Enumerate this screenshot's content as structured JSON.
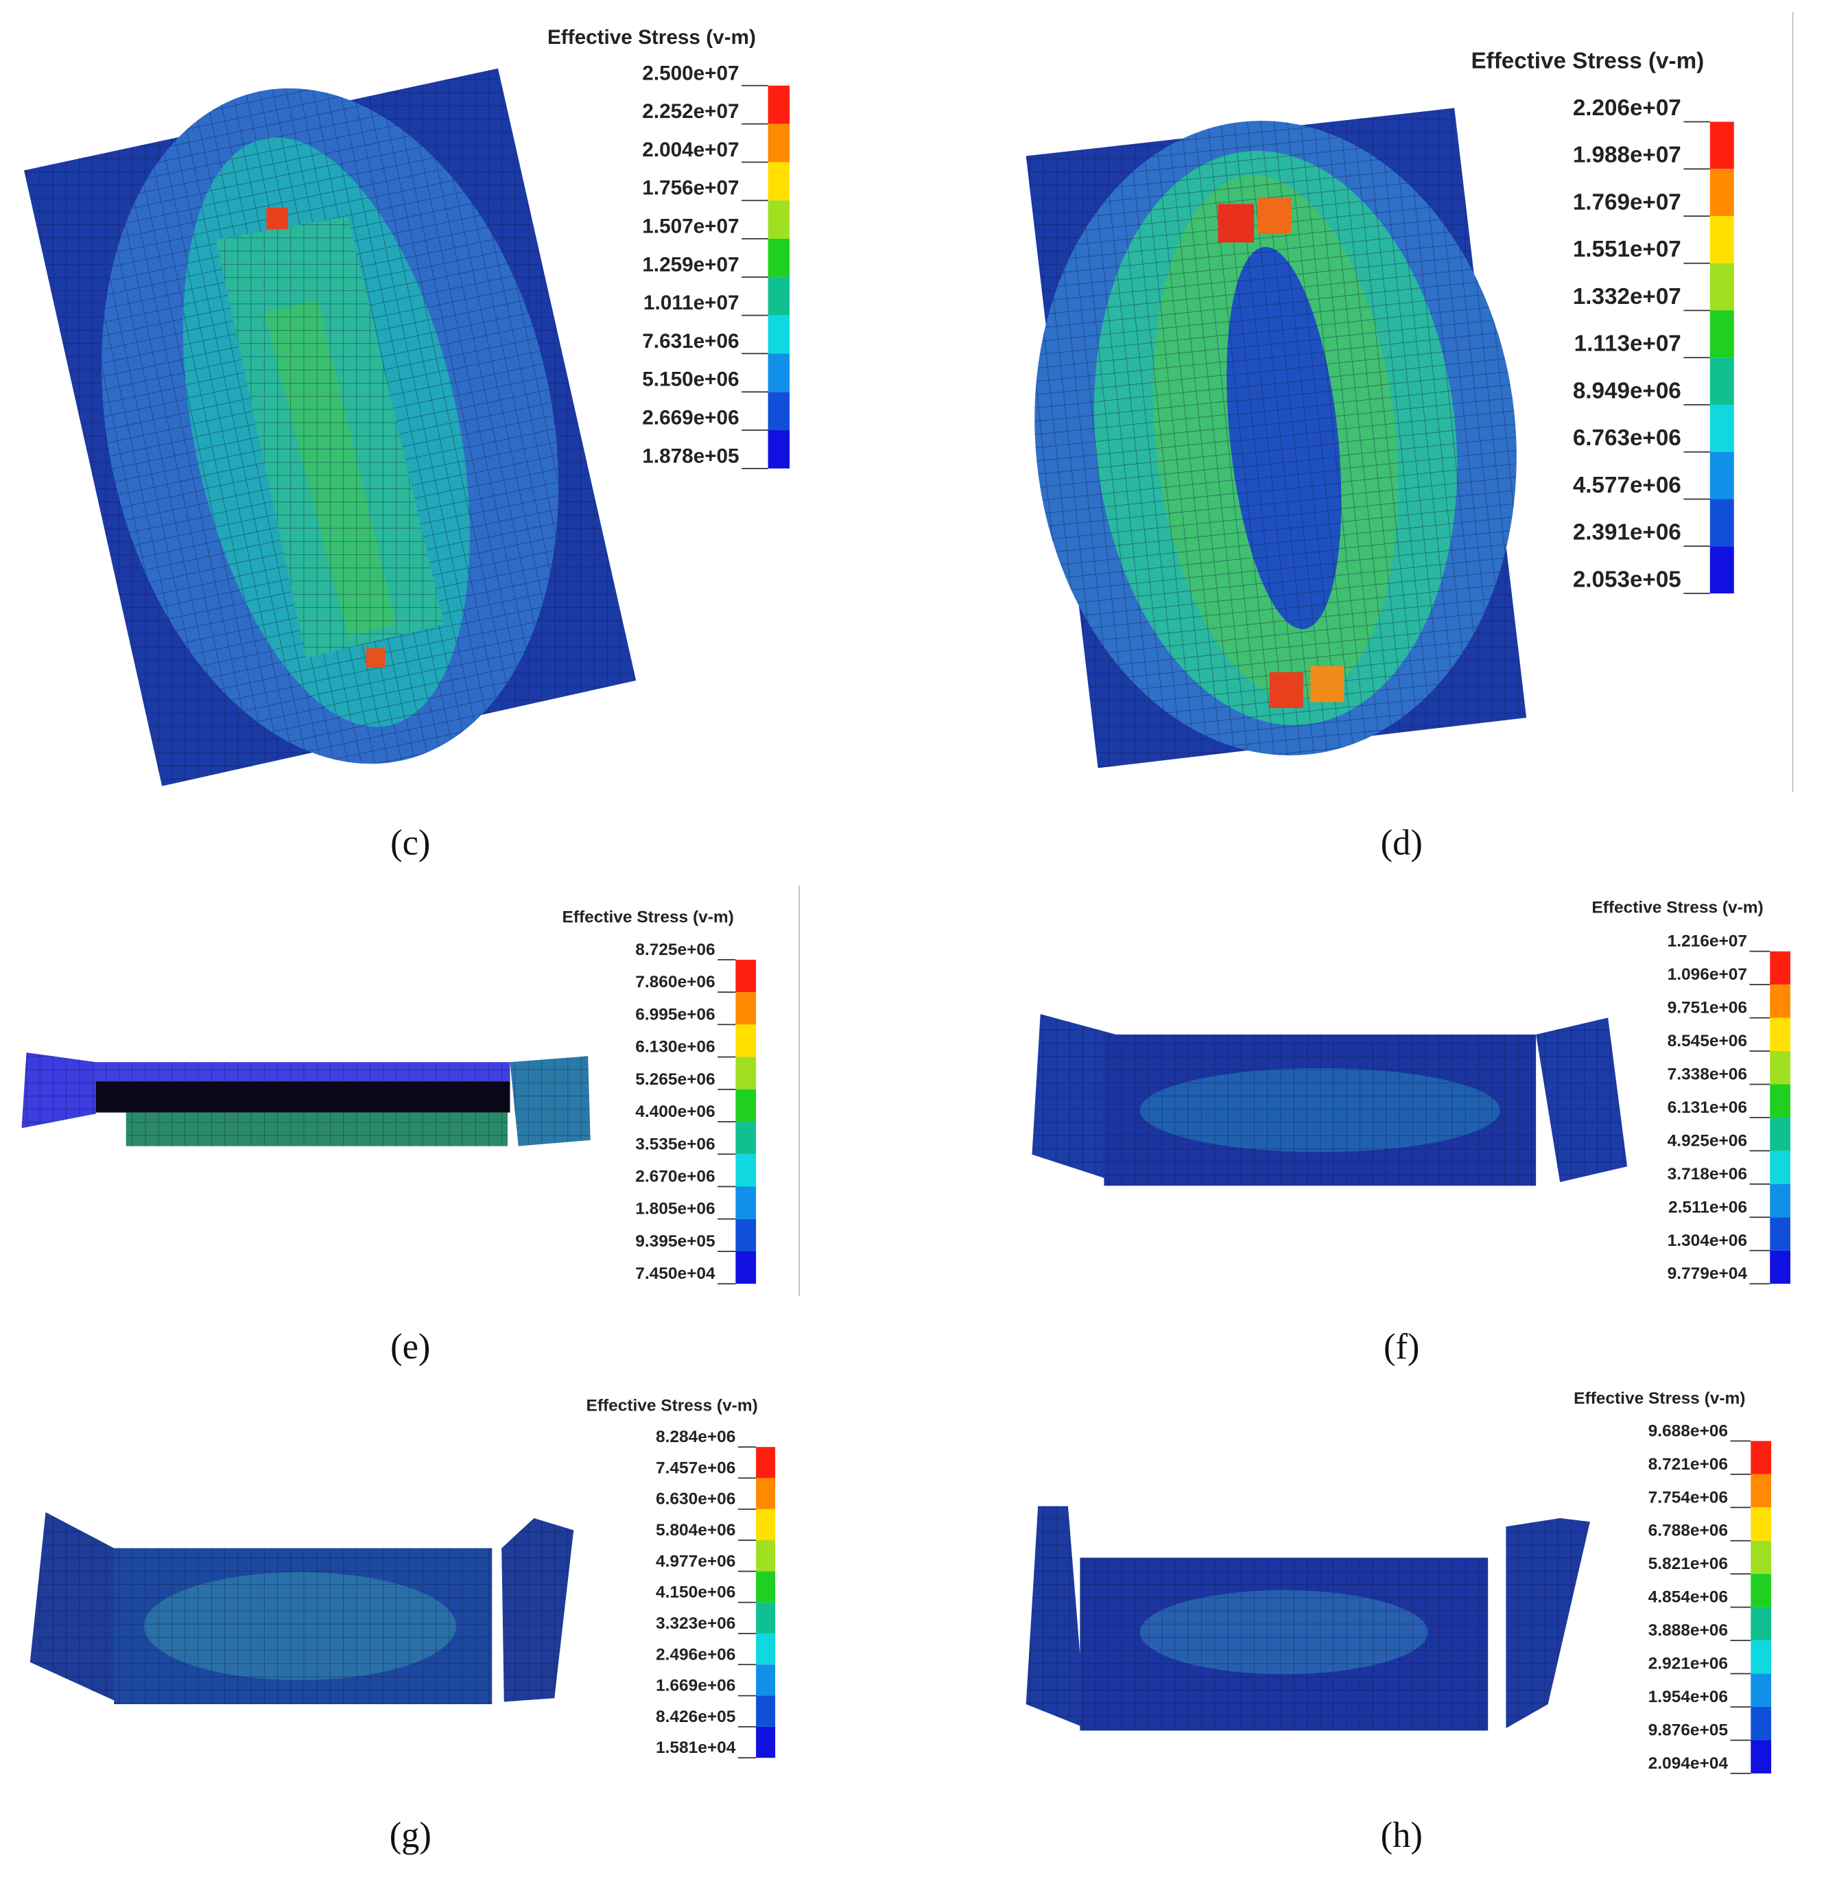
{
  "panels": [
    {
      "caption": "(c)",
      "legend_title": "Effective Stress (v-m)",
      "legend_labels": [
        "2.500e+07",
        "2.252e+07",
        "2.004e+07",
        "1.756e+07",
        "1.507e+07",
        "1.259e+07",
        "1.011e+07",
        "7.631e+06",
        "5.150e+06",
        "2.669e+06",
        "1.878e+05"
      ]
    },
    {
      "caption": "(d)",
      "legend_title": "Effective Stress (v-m)",
      "legend_labels": [
        "2.206e+07",
        "1.988e+07",
        "1.769e+07",
        "1.551e+07",
        "1.332e+07",
        "1.113e+07",
        "8.949e+06",
        "6.763e+06",
        "4.577e+06",
        "2.391e+06",
        "2.053e+05"
      ]
    },
    {
      "caption": "(e)",
      "legend_title": "Effective Stress (v-m)",
      "legend_labels": [
        "8.725e+06",
        "7.860e+06",
        "6.995e+06",
        "6.130e+06",
        "5.265e+06",
        "4.400e+06",
        "3.535e+06",
        "2.670e+06",
        "1.805e+06",
        "9.395e+05",
        "7.450e+04"
      ]
    },
    {
      "caption": "(f)",
      "legend_title": "Effective Stress (v-m)",
      "legend_labels": [
        "1.216e+07",
        "1.096e+07",
        "9.751e+06",
        "8.545e+06",
        "7.338e+06",
        "6.131e+06",
        "4.925e+06",
        "3.718e+06",
        "2.511e+06",
        "1.304e+06",
        "9.779e+04"
      ]
    },
    {
      "caption": "(g)",
      "legend_title": "Effective Stress (v-m)",
      "legend_labels": [
        "8.284e+06",
        "7.457e+06",
        "6.630e+06",
        "5.804e+06",
        "4.977e+06",
        "4.150e+06",
        "3.323e+06",
        "2.496e+06",
        "1.669e+06",
        "8.426e+05",
        "1.581e+04"
      ]
    },
    {
      "caption": "(h)",
      "legend_title": "Effective Stress (v-m)",
      "legend_labels": [
        "9.688e+06",
        "8.721e+06",
        "7.754e+06",
        "6.788e+06",
        "5.821e+06",
        "4.854e+06",
        "3.888e+06",
        "2.921e+06",
        "1.954e+06",
        "9.876e+05",
        "2.094e+04"
      ]
    }
  ]
}
